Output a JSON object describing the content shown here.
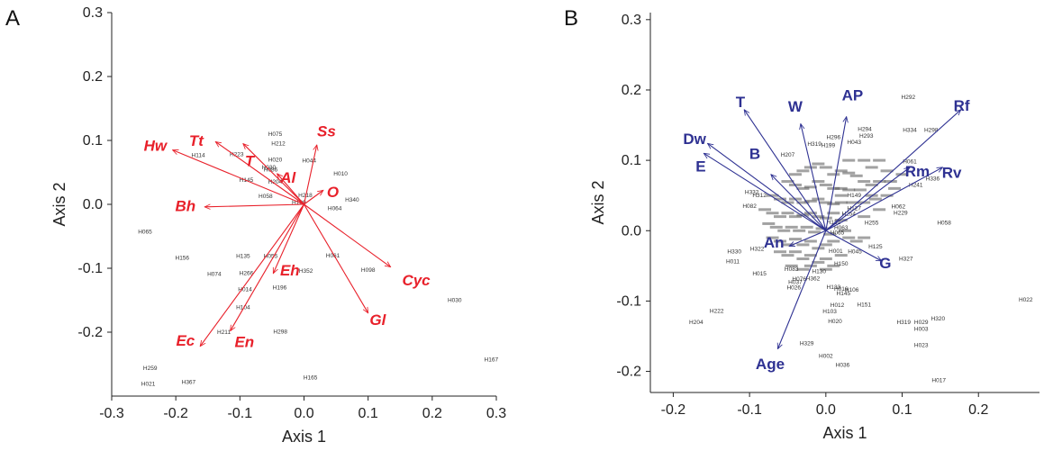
{
  "colors": {
    "red": "#e8202a",
    "blue": "#2e3192",
    "axis": "#222222",
    "point": "#333333"
  },
  "chart_data": [
    {
      "panel": "A",
      "type": "scatter",
      "xlabel": "Axis 1",
      "ylabel": "Axis 2",
      "xlim": [
        -0.3,
        0.3
      ],
      "ylim": [
        -0.3,
        0.3
      ],
      "xticks": [
        "-0.3",
        "-0.2",
        "-0.1",
        "0.0",
        "0.1",
        "0.2",
        "0.3"
      ],
      "yticks": [
        "-0.2",
        "-0.1",
        "0.0",
        "0.1",
        "0.2",
        "0.3"
      ],
      "vector_color": "red",
      "vectors": [
        {
          "label": "Hw",
          "x": -0.205,
          "y": 0.085,
          "lx": -0.232,
          "ly": 0.092
        },
        {
          "label": "Tt",
          "x": -0.138,
          "y": 0.098,
          "lx": -0.168,
          "ly": 0.1
        },
        {
          "label": "T",
          "x": -0.095,
          "y": 0.095,
          "lx": -0.085,
          "ly": 0.068
        },
        {
          "label": "Al",
          "x": -0.042,
          "y": 0.048,
          "lx": -0.025,
          "ly": 0.042
        },
        {
          "label": "Ss",
          "x": 0.02,
          "y": 0.093,
          "lx": 0.035,
          "ly": 0.115
        },
        {
          "label": "O",
          "x": 0.03,
          "y": 0.022,
          "lx": 0.045,
          "ly": 0.02
        },
        {
          "label": "Bh",
          "x": -0.155,
          "y": -0.004,
          "lx": -0.185,
          "ly": -0.002
        },
        {
          "label": "Cyc",
          "x": 0.135,
          "y": -0.098,
          "lx": 0.175,
          "ly": -0.118
        },
        {
          "label": "Gl",
          "x": 0.1,
          "y": -0.17,
          "lx": 0.115,
          "ly": -0.18
        },
        {
          "label": "Eh",
          "x": -0.048,
          "y": -0.108,
          "lx": -0.022,
          "ly": -0.103
        },
        {
          "label": "En",
          "x": -0.115,
          "y": -0.198,
          "lx": -0.093,
          "ly": -0.215
        },
        {
          "label": "Ec",
          "x": -0.162,
          "y": -0.222,
          "lx": -0.185,
          "ly": -0.213
        }
      ],
      "points": [
        {
          "label": "H075",
          "x": -0.045,
          "y": 0.11
        },
        {
          "label": "H212",
          "x": -0.04,
          "y": 0.095
        },
        {
          "label": "H223",
          "x": -0.105,
          "y": 0.078
        },
        {
          "label": "H114",
          "x": -0.165,
          "y": 0.077
        },
        {
          "label": "H020",
          "x": -0.045,
          "y": 0.07
        },
        {
          "label": "H030",
          "x": -0.055,
          "y": 0.058
        },
        {
          "label": "H086",
          "x": -0.052,
          "y": 0.054
        },
        {
          "label": "H145",
          "x": -0.09,
          "y": 0.038
        },
        {
          "label": "H204",
          "x": -0.045,
          "y": 0.035
        },
        {
          "label": "H218",
          "x": 0.002,
          "y": 0.014
        },
        {
          "label": "H340",
          "x": 0.075,
          "y": 0.007
        },
        {
          "label": "H058",
          "x": -0.06,
          "y": 0.013
        },
        {
          "label": "H044",
          "x": 0.008,
          "y": 0.068
        },
        {
          "label": "H010",
          "x": 0.057,
          "y": 0.048
        },
        {
          "label": "H189",
          "x": -0.008,
          "y": 0.003
        },
        {
          "label": "H064",
          "x": 0.048,
          "y": -0.006
        },
        {
          "label": "H065",
          "x": -0.248,
          "y": -0.043
        },
        {
          "label": "H156",
          "x": -0.19,
          "y": -0.084
        },
        {
          "label": "H135",
          "x": -0.095,
          "y": -0.081
        },
        {
          "label": "H055",
          "x": -0.052,
          "y": -0.081
        },
        {
          "label": "H074",
          "x": -0.14,
          "y": -0.109
        },
        {
          "label": "H266",
          "x": -0.09,
          "y": -0.108
        },
        {
          "label": "H014",
          "x": -0.092,
          "y": -0.133
        },
        {
          "label": "H196",
          "x": -0.038,
          "y": -0.13
        },
        {
          "label": "H352",
          "x": 0.003,
          "y": -0.104
        },
        {
          "label": "H061",
          "x": 0.045,
          "y": -0.08
        },
        {
          "label": "H098",
          "x": 0.1,
          "y": -0.103
        },
        {
          "label": "H104",
          "x": -0.095,
          "y": -0.161
        },
        {
          "label": "H030",
          "x": 0.235,
          "y": -0.15
        },
        {
          "label": "H211",
          "x": -0.125,
          "y": -0.2
        },
        {
          "label": "H298",
          "x": -0.037,
          "y": -0.199
        },
        {
          "label": "H167",
          "x": 0.292,
          "y": -0.243
        },
        {
          "label": "H259",
          "x": -0.24,
          "y": -0.256
        },
        {
          "label": "H165",
          "x": 0.01,
          "y": -0.271
        },
        {
          "label": "H021",
          "x": -0.243,
          "y": -0.281
        },
        {
          "label": "H367",
          "x": -0.18,
          "y": -0.278
        }
      ]
    },
    {
      "panel": "B",
      "type": "scatter",
      "xlabel": "Axis 1",
      "ylabel": "Axis 2",
      "xlim": [
        -0.23,
        0.28
      ],
      "ylim": [
        -0.23,
        0.31
      ],
      "xticks": [
        "-0.2",
        "-0.1",
        "0.0",
        "0.1",
        "0.2"
      ],
      "yticks": [
        "-0.2",
        "-0.1",
        "0.0",
        "0.1",
        "0.2",
        "0.3"
      ],
      "vector_color": "blue",
      "vectors": [
        {
          "label": "T",
          "x": -0.107,
          "y": 0.172,
          "lx": -0.112,
          "ly": 0.183
        },
        {
          "label": "W",
          "x": -0.033,
          "y": 0.152,
          "lx": -0.04,
          "ly": 0.177
        },
        {
          "label": "AP",
          "x": 0.027,
          "y": 0.162,
          "lx": 0.035,
          "ly": 0.193
        },
        {
          "label": "Rf",
          "x": 0.177,
          "y": 0.172,
          "lx": 0.178,
          "ly": 0.178
        },
        {
          "label": "Dw",
          "x": -0.155,
          "y": 0.124,
          "lx": -0.172,
          "ly": 0.131
        },
        {
          "label": "E",
          "x": -0.16,
          "y": 0.11,
          "lx": -0.164,
          "ly": 0.092
        },
        {
          "label": "B",
          "x": -0.072,
          "y": 0.08,
          "lx": -0.093,
          "ly": 0.11
        },
        {
          "label": "Rm",
          "x": 0.11,
          "y": 0.09,
          "lx": 0.12,
          "ly": 0.085
        },
        {
          "label": "Rv",
          "x": 0.153,
          "y": 0.09,
          "lx": 0.165,
          "ly": 0.083
        },
        {
          "label": "An",
          "x": -0.048,
          "y": -0.022,
          "lx": -0.068,
          "ly": -0.016
        },
        {
          "label": "G",
          "x": 0.073,
          "y": -0.043,
          "lx": 0.078,
          "ly": -0.046
        },
        {
          "label": "Age",
          "x": -0.063,
          "y": -0.168,
          "lx": -0.073,
          "ly": -0.189
        }
      ],
      "points": [
        {
          "label": "H292",
          "x": 0.108,
          "y": 0.19
        },
        {
          "label": "H298",
          "x": 0.138,
          "y": 0.143
        },
        {
          "label": "H294",
          "x": 0.051,
          "y": 0.144
        },
        {
          "label": "H293",
          "x": 0.053,
          "y": 0.135
        },
        {
          "label": "H334",
          "x": 0.11,
          "y": 0.143
        },
        {
          "label": "H061",
          "x": 0.11,
          "y": 0.098
        },
        {
          "label": "H336",
          "x": 0.14,
          "y": 0.074
        },
        {
          "label": "H199",
          "x": 0.003,
          "y": 0.121
        },
        {
          "label": "H043",
          "x": 0.037,
          "y": 0.126
        },
        {
          "label": "H319",
          "x": -0.015,
          "y": 0.123
        },
        {
          "label": "H296",
          "x": 0.01,
          "y": 0.133
        },
        {
          "label": "H207",
          "x": -0.05,
          "y": 0.108
        },
        {
          "label": "H241",
          "x": 0.118,
          "y": 0.065
        },
        {
          "label": "H332",
          "x": -0.097,
          "y": 0.055
        },
        {
          "label": "H082",
          "x": -0.1,
          "y": 0.035
        },
        {
          "label": "H312",
          "x": -0.087,
          "y": 0.05
        },
        {
          "label": "H062",
          "x": 0.095,
          "y": 0.034
        },
        {
          "label": "H229",
          "x": 0.098,
          "y": 0.025
        },
        {
          "label": "H058",
          "x": 0.155,
          "y": 0.011
        },
        {
          "label": "H255",
          "x": 0.06,
          "y": 0.011
        },
        {
          "label": "H127",
          "x": 0.037,
          "y": 0.032
        },
        {
          "label": "H254",
          "x": 0.03,
          "y": 0.024
        },
        {
          "label": "H149",
          "x": 0.037,
          "y": 0.05
        },
        {
          "label": "H132",
          "x": 0.01,
          "y": 0.012
        },
        {
          "label": "H063",
          "x": 0.02,
          "y": 0.004
        },
        {
          "label": "H065",
          "x": 0.015,
          "y": -0.003
        },
        {
          "label": "H125",
          "x": 0.065,
          "y": -0.023
        },
        {
          "label": "H327",
          "x": 0.105,
          "y": -0.04
        },
        {
          "label": "H045",
          "x": 0.038,
          "y": -0.03
        },
        {
          "label": "H330",
          "x": -0.12,
          "y": -0.03
        },
        {
          "label": "H011",
          "x": -0.122,
          "y": -0.044
        },
        {
          "label": "H322",
          "x": -0.09,
          "y": -0.026
        },
        {
          "label": "H015",
          "x": -0.087,
          "y": -0.061
        },
        {
          "label": "H083",
          "x": -0.045,
          "y": -0.055
        },
        {
          "label": "H037",
          "x": -0.04,
          "y": -0.073
        },
        {
          "label": "H076",
          "x": -0.035,
          "y": -0.069
        },
        {
          "label": "H026",
          "x": -0.042,
          "y": -0.081
        },
        {
          "label": "H362",
          "x": -0.017,
          "y": -0.068
        },
        {
          "label": "H150",
          "x": 0.02,
          "y": -0.047
        },
        {
          "label": "H130",
          "x": -0.009,
          "y": -0.058
        },
        {
          "label": "H001",
          "x": 0.013,
          "y": -0.029
        },
        {
          "label": "H016",
          "x": 0.02,
          "y": -0.083
        },
        {
          "label": "H133",
          "x": 0.01,
          "y": -0.08
        },
        {
          "label": "H145",
          "x": 0.023,
          "y": -0.089
        },
        {
          "label": "H106",
          "x": 0.034,
          "y": -0.084
        },
        {
          "label": "H151",
          "x": 0.05,
          "y": -0.105
        },
        {
          "label": "H012",
          "x": 0.015,
          "y": -0.106
        },
        {
          "label": "H103",
          "x": 0.005,
          "y": -0.115
        },
        {
          "label": "H020",
          "x": 0.012,
          "y": -0.129
        },
        {
          "label": "H222",
          "x": -0.143,
          "y": -0.114
        },
        {
          "label": "H204",
          "x": -0.17,
          "y": -0.13
        },
        {
          "label": "H319",
          "x": 0.102,
          "y": -0.13
        },
        {
          "label": "H029",
          "x": 0.125,
          "y": -0.13
        },
        {
          "label": "H320",
          "x": 0.147,
          "y": -0.125
        },
        {
          "label": "H003",
          "x": 0.125,
          "y": -0.14
        },
        {
          "label": "H023",
          "x": 0.125,
          "y": -0.163
        },
        {
          "label": "H329",
          "x": -0.025,
          "y": -0.16
        },
        {
          "label": "H002",
          "x": 0.0,
          "y": -0.178
        },
        {
          "label": "H036",
          "x": 0.022,
          "y": -0.191
        },
        {
          "label": "H017",
          "x": 0.148,
          "y": -0.213
        },
        {
          "label": "H022",
          "x": 0.262,
          "y": -0.098
        }
      ],
      "cluster_points": [
        [
          -0.04,
          0.08
        ],
        [
          -0.03,
          0.085
        ],
        [
          -0.02,
          0.09
        ],
        [
          -0.01,
          0.095
        ],
        [
          0.0,
          0.09
        ],
        [
          0.01,
          0.08
        ],
        [
          0.02,
          0.085
        ],
        [
          0.03,
          0.082
        ],
        [
          0.04,
          0.078
        ],
        [
          0.05,
          0.07
        ],
        [
          0.06,
          0.065
        ],
        [
          -0.05,
          0.07
        ],
        [
          -0.04,
          0.065
        ],
        [
          -0.03,
          0.06
        ],
        [
          -0.02,
          0.062
        ],
        [
          -0.01,
          0.07
        ],
        [
          0.0,
          0.065
        ],
        [
          0.01,
          0.06
        ],
        [
          0.02,
          0.06
        ],
        [
          0.03,
          0.058
        ],
        [
          0.045,
          0.058
        ],
        [
          0.06,
          0.05
        ],
        [
          -0.07,
          0.05
        ],
        [
          -0.06,
          0.045
        ],
        [
          -0.05,
          0.04
        ],
        [
          -0.04,
          0.045
        ],
        [
          -0.03,
          0.04
        ],
        [
          -0.02,
          0.042
        ],
        [
          -0.01,
          0.045
        ],
        [
          0.0,
          0.04
        ],
        [
          0.01,
          0.038
        ],
        [
          0.02,
          0.04
        ],
        [
          0.035,
          0.04
        ],
        [
          -0.08,
          0.03
        ],
        [
          -0.07,
          0.025
        ],
        [
          -0.06,
          0.02
        ],
        [
          -0.05,
          0.025
        ],
        [
          -0.04,
          0.02
        ],
        [
          -0.03,
          0.022
        ],
        [
          -0.02,
          0.025
        ],
        [
          -0.01,
          0.02
        ],
        [
          0.0,
          0.018
        ],
        [
          0.01,
          0.025
        ],
        [
          0.02,
          0.015
        ],
        [
          -0.075,
          0.01
        ],
        [
          -0.065,
          0.005
        ],
        [
          -0.055,
          0.0
        ],
        [
          -0.045,
          0.005
        ],
        [
          -0.035,
          0.0
        ],
        [
          -0.025,
          0.005
        ],
        [
          -0.015,
          -0.002
        ],
        [
          -0.005,
          0.003
        ],
        [
          0.005,
          -0.005
        ],
        [
          0.025,
          0.0
        ],
        [
          -0.07,
          -0.01
        ],
        [
          -0.06,
          -0.015
        ],
        [
          -0.05,
          -0.02
        ],
        [
          -0.04,
          -0.012
        ],
        [
          -0.03,
          -0.02
        ],
        [
          -0.02,
          -0.015
        ],
        [
          -0.01,
          -0.025
        ],
        [
          0.0,
          -0.02
        ],
        [
          0.01,
          -0.015
        ],
        [
          0.03,
          -0.01
        ],
        [
          -0.06,
          -0.03
        ],
        [
          -0.05,
          -0.035
        ],
        [
          -0.04,
          -0.03
        ],
        [
          -0.03,
          -0.04
        ],
        [
          -0.02,
          -0.035
        ],
        [
          -0.01,
          -0.045
        ],
        [
          0.0,
          -0.04
        ],
        [
          0.02,
          -0.035
        ],
        [
          0.04,
          -0.015
        ],
        [
          0.05,
          -0.01
        ],
        [
          -0.045,
          -0.05
        ],
        [
          -0.03,
          -0.055
        ],
        [
          -0.02,
          -0.05
        ],
        [
          0.0,
          -0.055
        ],
        [
          0.01,
          -0.05
        ],
        [
          0.05,
          0.02
        ],
        [
          0.07,
          0.03
        ],
        [
          0.08,
          0.05
        ],
        [
          0.09,
          0.06
        ],
        [
          0.07,
          0.07
        ],
        [
          0.06,
          0.09
        ],
        [
          0.05,
          0.1
        ],
        [
          0.07,
          0.1
        ],
        [
          0.03,
          0.1
        ],
        [
          0.08,
          0.085
        ],
        [
          0.1,
          0.08
        ],
        [
          0.085,
          0.07
        ],
        [
          0.02,
          0.05
        ],
        [
          0.05,
          0.04
        ],
        [
          0.065,
          0.045
        ]
      ]
    }
  ]
}
